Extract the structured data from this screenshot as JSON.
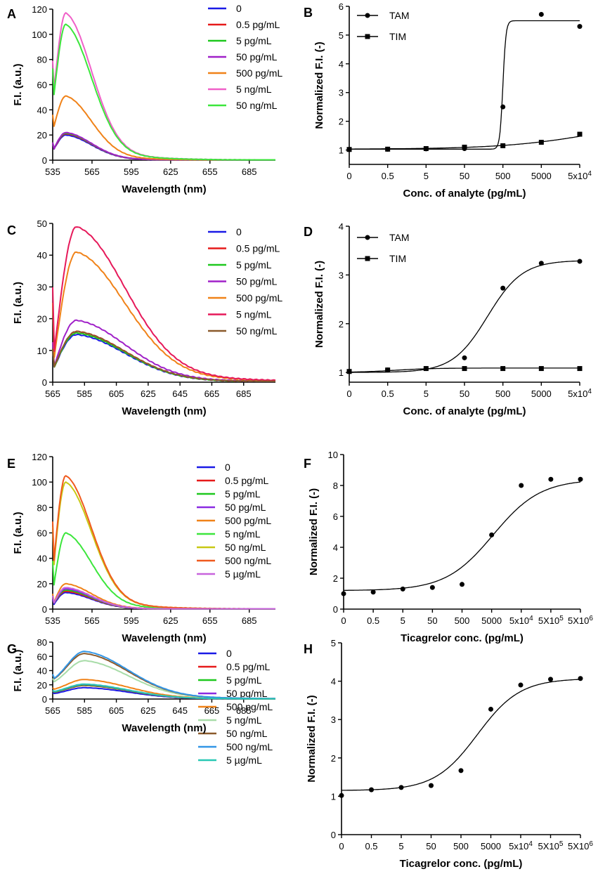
{
  "chart_data": [
    {
      "panel": "A",
      "type": "line",
      "xlabel": "Wavelength (nm)",
      "ylabel": "F.I. (a.u.)",
      "xlim": [
        535,
        705
      ],
      "ylim": [
        0,
        120
      ],
      "xticks": [
        "535",
        "565",
        "595",
        "625",
        "655",
        "685"
      ],
      "yticks": [
        "0",
        "20",
        "40",
        "60",
        "80",
        "100",
        "120"
      ],
      "peak_x": 545,
      "sigma_left": 8,
      "sigma_right": 20,
      "series": [
        {
          "name": "0",
          "color": "#1a1ae6",
          "peak": 20,
          "start": 13
        },
        {
          "name": "0.5 pg/mL",
          "color": "#e61a1a",
          "peak": 21,
          "start": 13.5
        },
        {
          "name": "5 pg/mL",
          "color": "#1ec81e",
          "peak": 21.5,
          "start": 14
        },
        {
          "name": "50 pg/mL",
          "color": "#a020c8",
          "peak": 22,
          "start": 14
        },
        {
          "name": "500 pg/mL",
          "color": "#f08218",
          "peak": 51,
          "start": 36
        },
        {
          "name": "5 ng/mL",
          "color": "#f060c8",
          "peak": 117,
          "start": 79
        },
        {
          "name": "50 ng/mL",
          "color": "#3ce63c",
          "peak": 108,
          "start": 73
        }
      ]
    },
    {
      "panel": "B",
      "type": "scatter",
      "xlabel": "Conc. of analyte (pg/mL)",
      "ylabel": "Normalized F.I. (-)",
      "ylim": [
        0.5,
        6
      ],
      "xticks": [
        "0",
        "0.5",
        "5",
        "50",
        "500",
        "5000",
        "5x10^4"
      ],
      "yticks": [
        "1",
        "2",
        "3",
        "4",
        "5",
        "6"
      ],
      "series": [
        {
          "name": "TAM",
          "marker": "circle",
          "values": [
            1.02,
            1.03,
            1.04,
            1.05,
            2.5,
            5.72,
            5.3
          ],
          "fit": {
            "bottom": 1.03,
            "top": 5.5,
            "mid": 4.0,
            "slope": 25
          }
        },
        {
          "name": "TIM",
          "marker": "square",
          "values": [
            1.02,
            1.03,
            1.05,
            1.1,
            1.15,
            1.27,
            1.55
          ],
          "fit": {
            "bottom": 1.03,
            "top": 2.2,
            "mid": 6.6,
            "slope": 0.8
          }
        }
      ]
    },
    {
      "panel": "C",
      "type": "line",
      "xlabel": "Wavelength (nm)",
      "ylabel": "F.I. (a.u.)",
      "xlim": [
        565,
        705
      ],
      "ylim": [
        0,
        50
      ],
      "xticks": [
        "565",
        "585",
        "605",
        "625",
        "645",
        "665",
        "685"
      ],
      "yticks": [
        "0",
        "10",
        "20",
        "30",
        "40",
        "50"
      ],
      "peak_x": 580,
      "sigma_left": 14,
      "sigma_right": 31,
      "series": [
        {
          "name": "0",
          "color": "#1a1ae6",
          "peak": 15,
          "start": 10
        },
        {
          "name": "0.5 pg/mL",
          "color": "#e61a1a",
          "peak": 16,
          "start": 10.5
        },
        {
          "name": "5 pg/mL",
          "color": "#1ec81e",
          "peak": 15.5,
          "start": 10.3
        },
        {
          "name": "50 pg/mL",
          "color": "#a020c8",
          "peak": 19.5,
          "start": 12.5
        },
        {
          "name": "500 pg/mL",
          "color": "#f08218",
          "peak": 41,
          "start": 25
        },
        {
          "name": "5 ng/mL",
          "color": "#e6195a",
          "peak": 49,
          "start": 30
        },
        {
          "name": "50 ng/mL",
          "color": "#8b5a2b",
          "peak": 16,
          "start": 10.6
        }
      ]
    },
    {
      "panel": "D",
      "type": "scatter",
      "xlabel": "Conc. of analyte (pg/mL)",
      "ylabel": "Normalized F.I. (-)",
      "ylim": [
        0.8,
        4
      ],
      "xticks": [
        "0",
        "0.5",
        "5",
        "50",
        "500",
        "5000",
        "5x10^4"
      ],
      "yticks": [
        "1",
        "2",
        "3",
        "4"
      ],
      "series": [
        {
          "name": "TAM",
          "marker": "circle",
          "values": [
            1.02,
            1.05,
            1.08,
            1.3,
            2.73,
            3.24,
            3.28
          ],
          "fit": {
            "bottom": 1.0,
            "top": 3.3,
            "mid": 3.6,
            "slope": 2.2
          }
        },
        {
          "name": "TIM",
          "marker": "square",
          "values": [
            1.02,
            1.05,
            1.08,
            1.08,
            1.08,
            1.08,
            1.08
          ],
          "fit": {
            "bottom": 1.0,
            "top": 1.09,
            "mid": 1.2,
            "slope": 2
          }
        }
      ]
    },
    {
      "panel": "E",
      "type": "line",
      "xlabel": "Wavelength (nm)",
      "ylabel": "F.I. (a.u.)",
      "xlim": [
        535,
        705
      ],
      "ylim": [
        0,
        120
      ],
      "xticks": [
        "535",
        "565",
        "595",
        "625",
        "655",
        "685"
      ],
      "yticks": [
        "0",
        "20",
        "40",
        "60",
        "80",
        "100",
        "120"
      ],
      "peak_x": 545,
      "sigma_left": 9,
      "sigma_right": 20,
      "series": [
        {
          "name": "0",
          "color": "#1a1ae6",
          "peak": 13,
          "start": 8
        },
        {
          "name": "0.5 pg/mL",
          "color": "#e61a1a",
          "peak": 14,
          "start": 9
        },
        {
          "name": "5 pg/mL",
          "color": "#1ec81e",
          "peak": 15,
          "start": 9.5
        },
        {
          "name": "50 pg/mL",
          "color": "#8a2be2",
          "peak": 16,
          "start": 10
        },
        {
          "name": "500 pg/mL",
          "color": "#f08218",
          "peak": 20,
          "start": 12
        },
        {
          "name": "5 ng/mL",
          "color": "#3ce63c",
          "peak": 60,
          "start": 38
        },
        {
          "name": "50 ng/mL",
          "color": "#c8c814",
          "peak": 100,
          "start": 65
        },
        {
          "name": "500 ng/mL",
          "color": "#f05a1e",
          "peak": 105,
          "start": 69
        },
        {
          "name": "5 µg/mL",
          "color": "#c864dc",
          "peak": 17,
          "start": 10.5
        }
      ]
    },
    {
      "panel": "F",
      "type": "scatter",
      "xlabel": "Ticagrelor conc. (pg/mL)",
      "ylabel": "Normalized F.I. (-)",
      "ylim": [
        0,
        10
      ],
      "xticks": [
        "0",
        "0.5",
        "5",
        "50",
        "500",
        "5000",
        "5x10^4",
        "5X10^5",
        "5X10^6"
      ],
      "yticks": [
        "0",
        "2",
        "4",
        "6",
        "8",
        "10"
      ],
      "series": [
        {
          "name": "Ticagrelor",
          "marker": "circle",
          "values": [
            1.0,
            1.1,
            1.3,
            1.4,
            1.6,
            4.8,
            8.0,
            8.4,
            8.4
          ],
          "fit": {
            "bottom": 1.2,
            "top": 8.4,
            "mid": 5.05,
            "slope": 1.25
          }
        }
      ]
    },
    {
      "panel": "G",
      "type": "line",
      "xlabel": "Wavelength (nm)",
      "ylabel": "F.I. (a.u.)",
      "xlim": [
        565,
        705
      ],
      "ylim": [
        0,
        80
      ],
      "xticks": [
        "565",
        "585",
        "605",
        "625",
        "645",
        "665",
        "685"
      ],
      "yticks": [
        "0",
        "20",
        "40",
        "60",
        "80"
      ],
      "peak_x": 585,
      "sigma_left": 11,
      "sigma_right": 28,
      "series": [
        {
          "name": "0",
          "color": "#1a1ae6",
          "peak": 16,
          "start": 9
        },
        {
          "name": "0.5 pg/mL",
          "color": "#e61a1a",
          "peak": 19,
          "start": 11
        },
        {
          "name": "5 pg/mL",
          "color": "#1ec81e",
          "peak": 19.5,
          "start": 11.3
        },
        {
          "name": "50 pg/mL",
          "color": "#8a2be2",
          "peak": 20.5,
          "start": 12
        },
        {
          "name": "500 pg/mL",
          "color": "#f08218",
          "peak": 27.5,
          "start": 16
        },
        {
          "name": "5 ng/mL",
          "color": "#a8dca8",
          "peak": 54,
          "start": 29
        },
        {
          "name": "50 ng/mL",
          "color": "#8b5a2b",
          "peak": 64,
          "start": 34
        },
        {
          "name": "500 ng/mL",
          "color": "#3296e6",
          "peak": 67,
          "start": 35
        },
        {
          "name": "5 µg/mL",
          "color": "#28c8b4",
          "peak": 21,
          "start": 12.3
        }
      ]
    },
    {
      "panel": "H",
      "type": "scatter",
      "xlabel": "Ticagrelor conc. (pg/mL)",
      "ylabel": "Normalized F.I. (-)",
      "ylim": [
        0,
        5
      ],
      "xticks": [
        "0",
        "0.5",
        "5",
        "50",
        "500",
        "5000",
        "5x10^4",
        "5X10^5",
        "5X10^6"
      ],
      "yticks": [
        "0",
        "1",
        "2",
        "3",
        "4",
        "5"
      ],
      "series": [
        {
          "name": "Ticagrelor",
          "marker": "circle",
          "values": [
            1.02,
            1.17,
            1.23,
            1.28,
            1.67,
            3.27,
            3.9,
            4.05,
            4.07
          ],
          "fit": {
            "bottom": 1.15,
            "top": 4.07,
            "mid": 4.55,
            "slope": 1.4
          }
        }
      ]
    }
  ]
}
